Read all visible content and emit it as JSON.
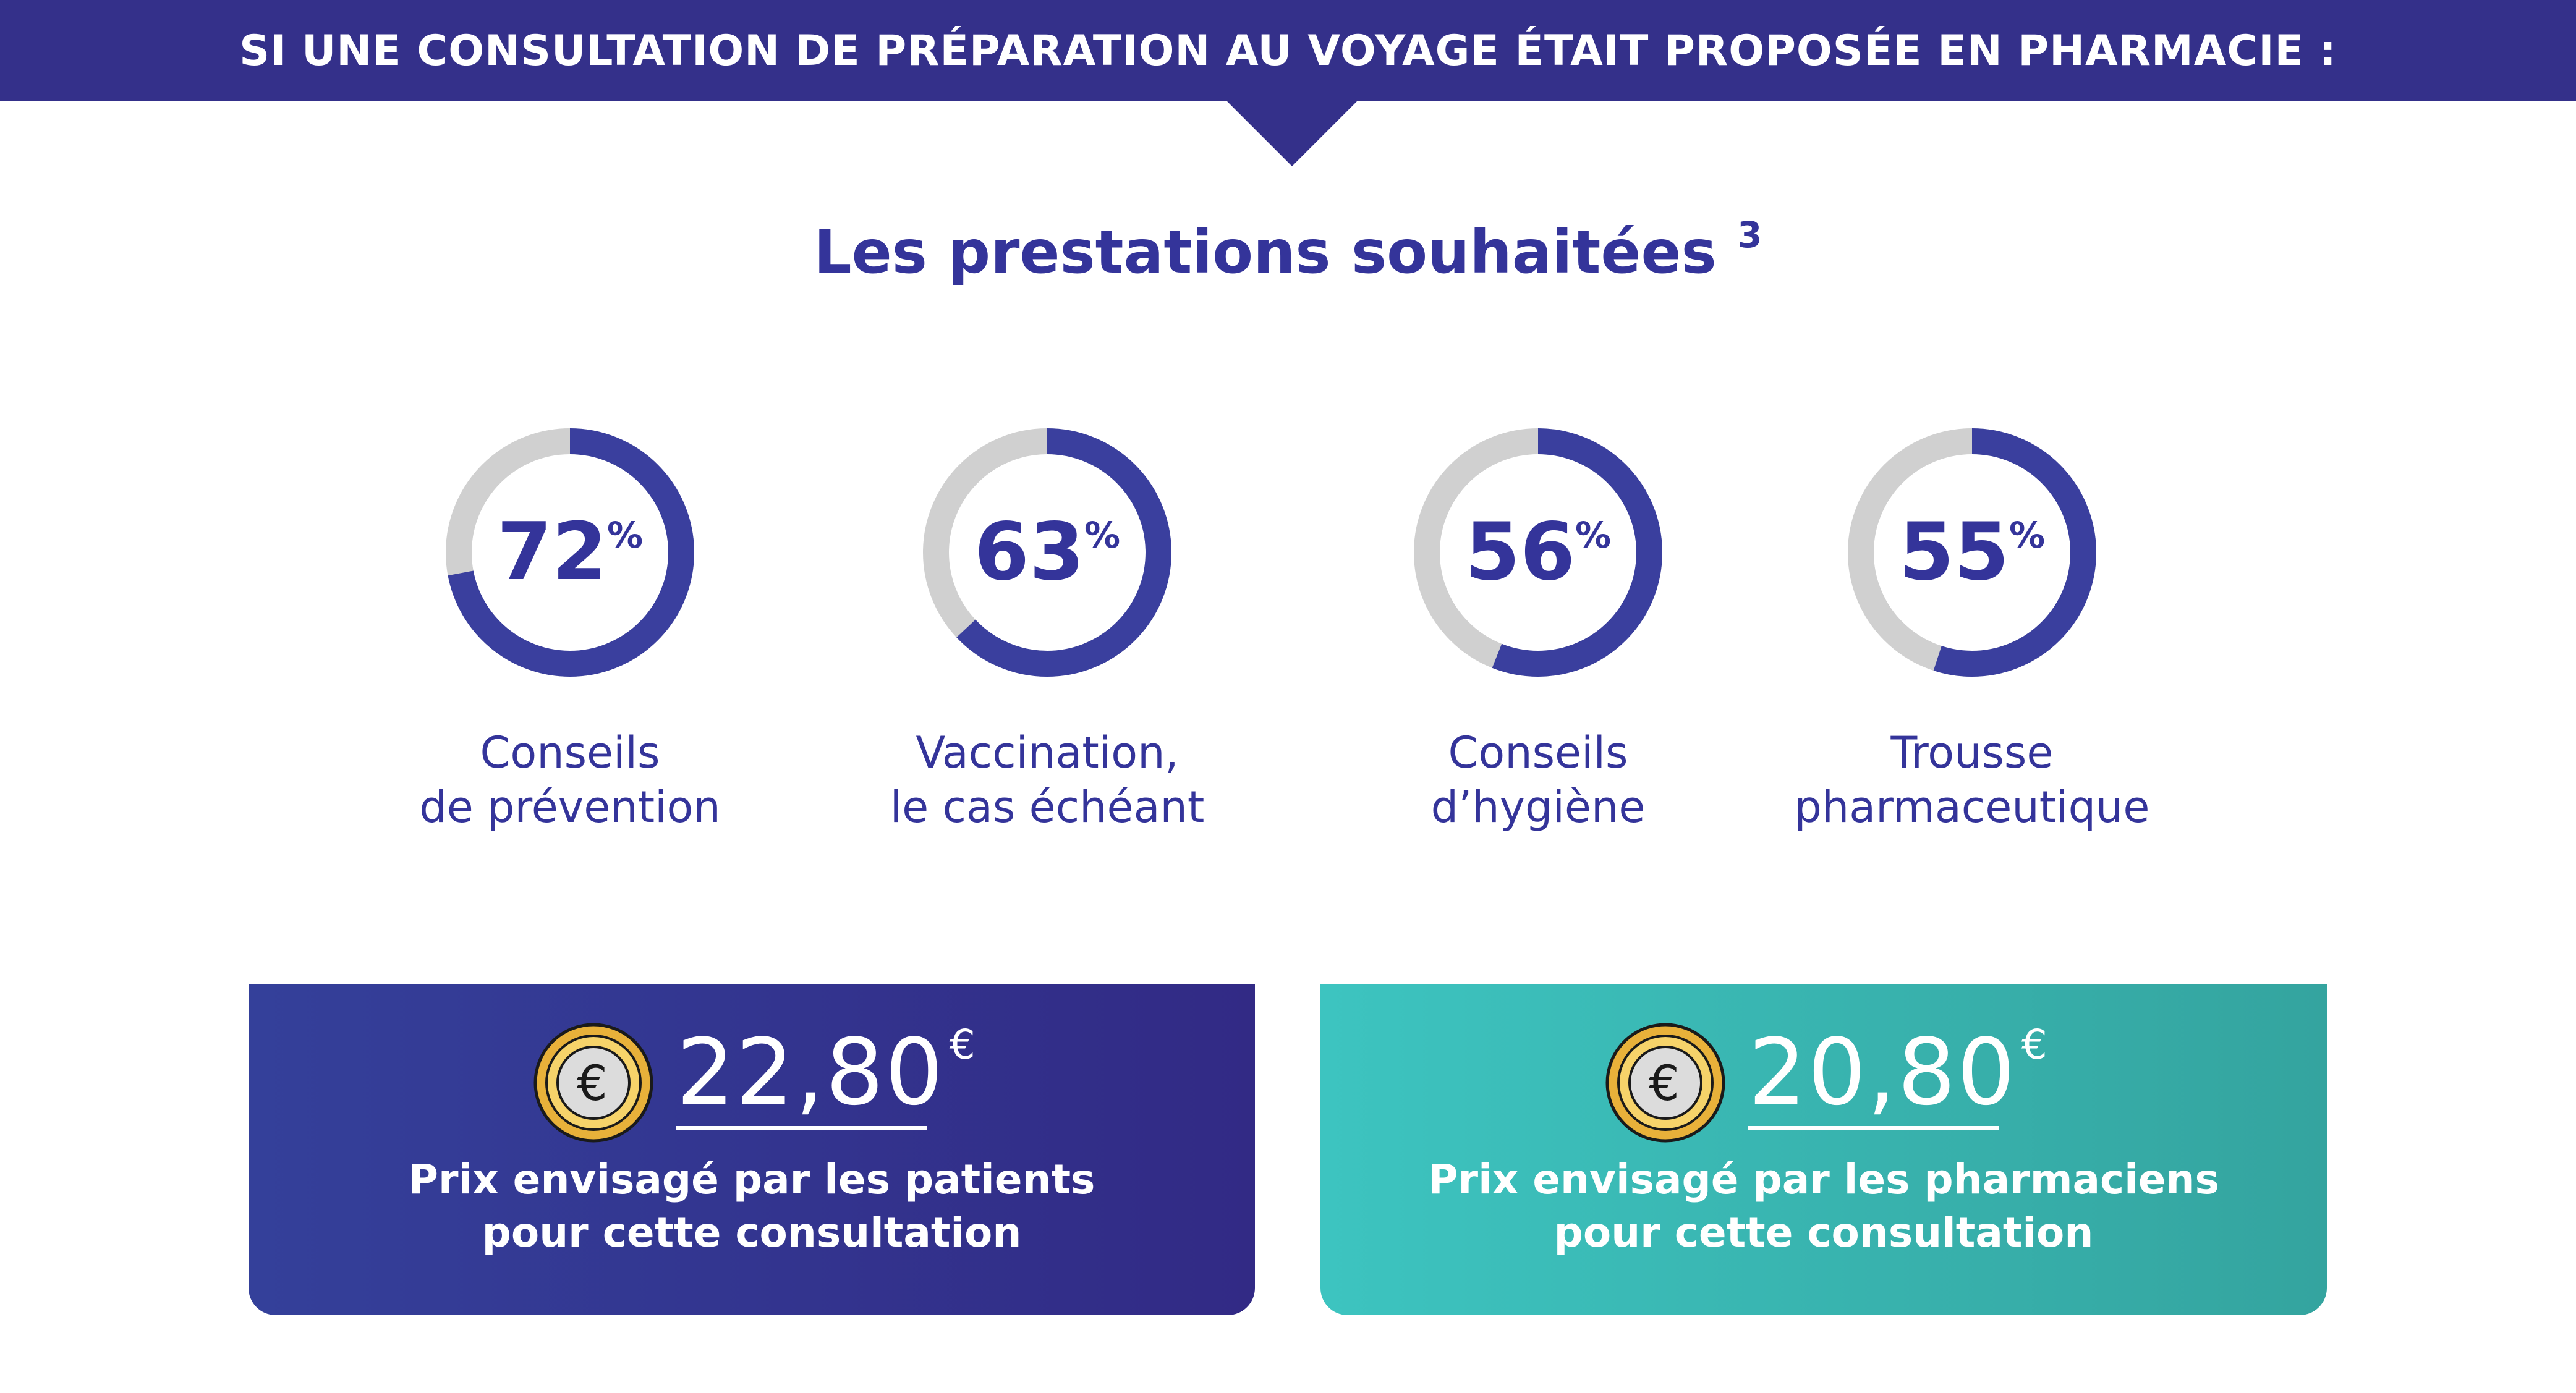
{
  "banner": {
    "title": "SI UNE CONSULTATION DE PRÉPARATION AU VOYAGE ÉTAIT PROPOSÉE EN PHARMACIE :"
  },
  "section": {
    "title": "Les prestations souhaitées",
    "footnote": "3"
  },
  "colors": {
    "navy": "#34308a",
    "ring_fill": "#3a3f9e",
    "ring_track": "#d0d0d0",
    "teal": "#3bbab6",
    "text_blue": "#34349a"
  },
  "stats": [
    {
      "value": "72",
      "unit": "%",
      "percent": 72,
      "label_line1": "Conseils",
      "label_line2": "de prévention"
    },
    {
      "value": "63",
      "unit": "%",
      "percent": 63,
      "label_line1": "Vaccination,",
      "label_line2": "le cas échéant"
    },
    {
      "value": "56",
      "unit": "%",
      "percent": 56,
      "label_line1": "Conseils",
      "label_line2": "d’hygiène"
    },
    {
      "value": "55",
      "unit": "%",
      "percent": 55,
      "label_line1": "Trousse",
      "label_line2": "pharmaceutique"
    }
  ],
  "prices": [
    {
      "icon": "euro-coin-icon",
      "amount": "22,80",
      "currency": "€",
      "desc_line1": "Prix envisagé par les patients",
      "desc_line2": "pour cette consultation"
    },
    {
      "icon": "euro-coin-icon",
      "amount": "20,80",
      "currency": "€",
      "desc_line1": "Prix envisagé par les pharmaciens",
      "desc_line2": "pour cette consultation"
    }
  ]
}
